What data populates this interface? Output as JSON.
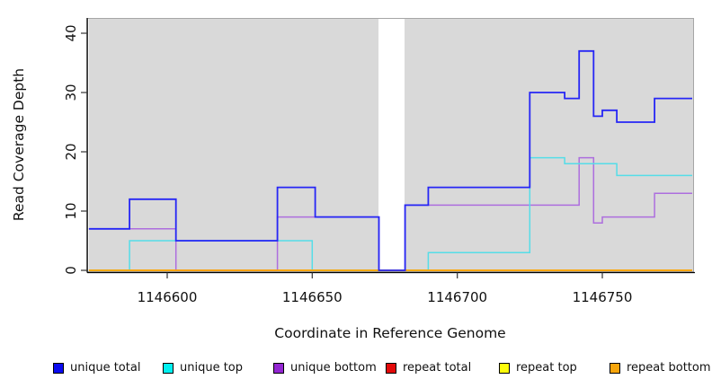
{
  "chart_data": {
    "type": "line",
    "subtype": "step-coverage-plot",
    "title": "",
    "xlabel": "Coordinate in Reference Genome",
    "ylabel": "Read Coverage Depth",
    "xlim": [
      1146573,
      1146781
    ],
    "ylim": [
      0,
      42
    ],
    "x_ticks": [
      1146600,
      1146650,
      1146700,
      1146750
    ],
    "y_ticks": [
      0,
      10,
      20,
      30,
      40
    ],
    "grid": false,
    "plot_background": "#d9d9d9",
    "coverage_regions": [
      [
        1146573,
        1146673
      ],
      [
        1146682,
        1146781
      ]
    ],
    "no_coverage_gap": [
      1146673,
      1146682
    ],
    "legend_position": "bottom",
    "draw_order": [
      "repeat total",
      "repeat top",
      "unique bottom",
      "unique top",
      "repeat bottom",
      "unique total"
    ],
    "series": [
      {
        "name": "unique total",
        "line_color": "#2626f5",
        "line_width": 1.8,
        "steps": [
          [
            1146573,
            7
          ],
          [
            1146587,
            12
          ],
          [
            1146603,
            5
          ],
          [
            1146638,
            14
          ],
          [
            1146651,
            9
          ],
          [
            1146673,
            0
          ],
          [
            1146682,
            11
          ],
          [
            1146690,
            14
          ],
          [
            1146725,
            30
          ],
          [
            1146737,
            29
          ],
          [
            1146742,
            37
          ],
          [
            1146747,
            26
          ],
          [
            1146750,
            27
          ],
          [
            1146755,
            25
          ],
          [
            1146768,
            29
          ],
          [
            1146781,
            29
          ]
        ]
      },
      {
        "name": "unique top",
        "line_color": "#55dde8",
        "line_width": 1.5,
        "steps": [
          [
            1146573,
            0
          ],
          [
            1146587,
            5
          ],
          [
            1146650,
            0
          ],
          [
            1146690,
            3
          ],
          [
            1146725,
            19
          ],
          [
            1146737,
            18
          ],
          [
            1146755,
            16
          ],
          [
            1146781,
            16
          ]
        ]
      },
      {
        "name": "unique bottom",
        "line_color": "#ad6ede",
        "line_width": 1.5,
        "steps": [
          [
            1146573,
            7
          ],
          [
            1146603,
            0
          ],
          [
            1146638,
            9
          ],
          [
            1146673,
            0
          ],
          [
            1146682,
            11
          ],
          [
            1146742,
            19
          ],
          [
            1146747,
            8
          ],
          [
            1146750,
            9
          ],
          [
            1146768,
            13
          ],
          [
            1146781,
            13
          ]
        ]
      },
      {
        "name": "repeat total",
        "line_color": "#e30909",
        "line_width": 1.4,
        "steps": [
          [
            1146573,
            0
          ],
          [
            1146781,
            0
          ]
        ]
      },
      {
        "name": "repeat top",
        "line_color": "#fdfd0a",
        "line_width": 1.4,
        "steps": [
          [
            1146573,
            0
          ],
          [
            1146781,
            0
          ]
        ]
      },
      {
        "name": "repeat bottom",
        "line_color": "#ffa500",
        "line_width": 1.7,
        "steps": [
          [
            1146573,
            0
          ],
          [
            1146781,
            0
          ]
        ]
      }
    ]
  },
  "legend": {
    "items": [
      {
        "label": "unique total",
        "color": "#0b0bf0"
      },
      {
        "label": "unique top",
        "color": "#00f0f0"
      },
      {
        "label": "unique bottom",
        "color": "#9326d2"
      },
      {
        "label": "repeat total",
        "color": "#e30909"
      },
      {
        "label": "repeat top",
        "color": "#fdfd0a"
      },
      {
        "label": "repeat bottom",
        "color": "#f7a50a"
      }
    ]
  },
  "figure": {
    "page_background": "#ffffff",
    "box_color": "#a6a6a6",
    "axis_color": "#000000",
    "tick_label_color": "#111111"
  }
}
